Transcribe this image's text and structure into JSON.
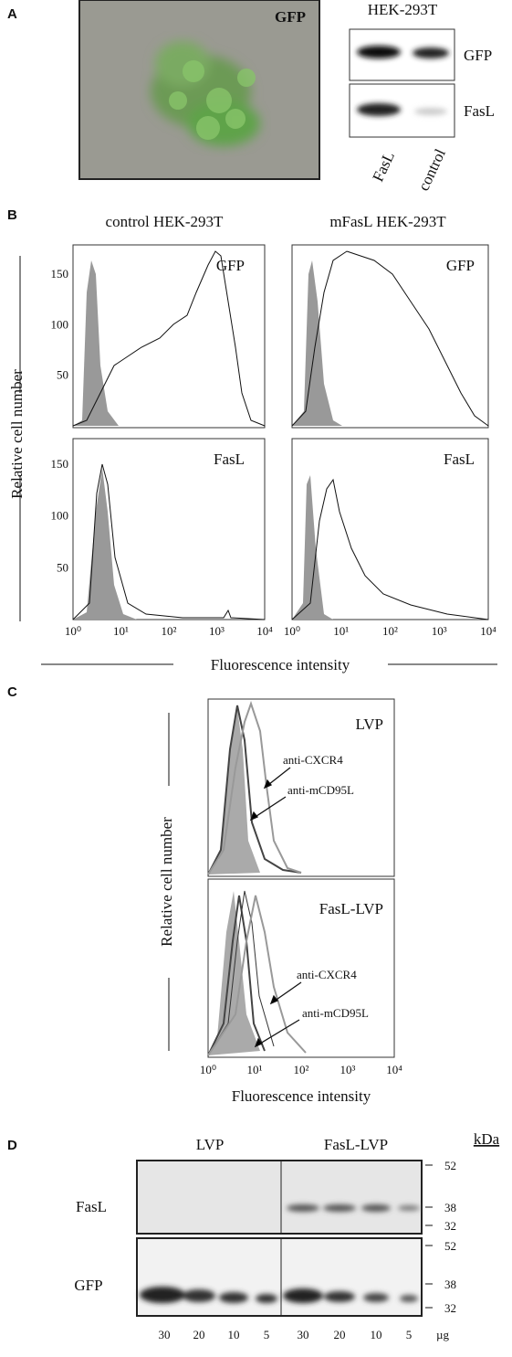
{
  "panel_a": {
    "label": "A",
    "image_label": "GFP",
    "cell_line": "HEK-293T",
    "blot_rows": [
      "GFP",
      "FasL"
    ],
    "lanes": [
      "FasL",
      "control"
    ]
  },
  "panel_b": {
    "label": "B",
    "columns": [
      "control HEK-293T",
      "mFasL HEK-293T"
    ],
    "row_labels": [
      "GFP",
      "FasL"
    ],
    "y_axis_label": "Relative cell number",
    "yticks": [
      "50",
      "100",
      "150"
    ],
    "xticks": [
      "10⁰",
      "10¹",
      "10²",
      "10³",
      "10⁴"
    ],
    "x_axis_label": "Fluorescence intensity"
  },
  "panel_c": {
    "label": "C",
    "plots": [
      {
        "title": "LVP",
        "annotations": [
          "anti-CXCR4",
          "anti-mCD95L"
        ]
      },
      {
        "title": "FasL-LVP",
        "annotations": [
          "anti-CXCR4",
          "anti-mCD95L"
        ]
      }
    ],
    "y_axis_label": "Relative cell number",
    "xticks": [
      "10⁰",
      "10¹",
      "10²",
      "10³",
      "10⁴"
    ],
    "x_axis_label": "Fluorescence intensity"
  },
  "panel_d": {
    "label": "D",
    "groups": [
      "LVP",
      "FasL-LVP"
    ],
    "unit": "kDa",
    "rows": [
      {
        "label": "FasL",
        "markers": [
          "52",
          "38",
          "32"
        ]
      },
      {
        "label": "GFP",
        "markers": [
          "52",
          "38",
          "32"
        ]
      }
    ],
    "lanes": [
      "30",
      "20",
      "10",
      "5",
      "30",
      "20",
      "10",
      "5"
    ],
    "lane_unit": "µg"
  }
}
